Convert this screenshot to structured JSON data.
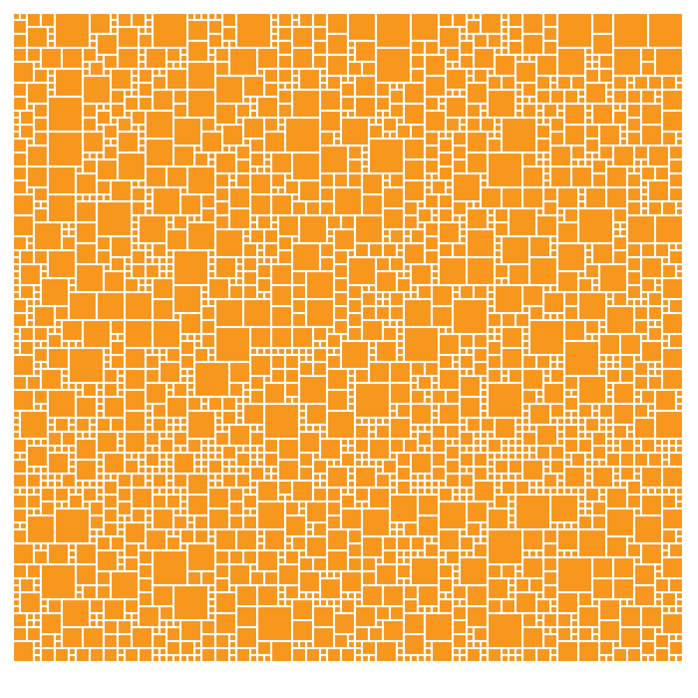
{
  "mosaic": {
    "fill_color": "#f7971e",
    "background_color": "#ffffff",
    "shape": "square"
  }
}
